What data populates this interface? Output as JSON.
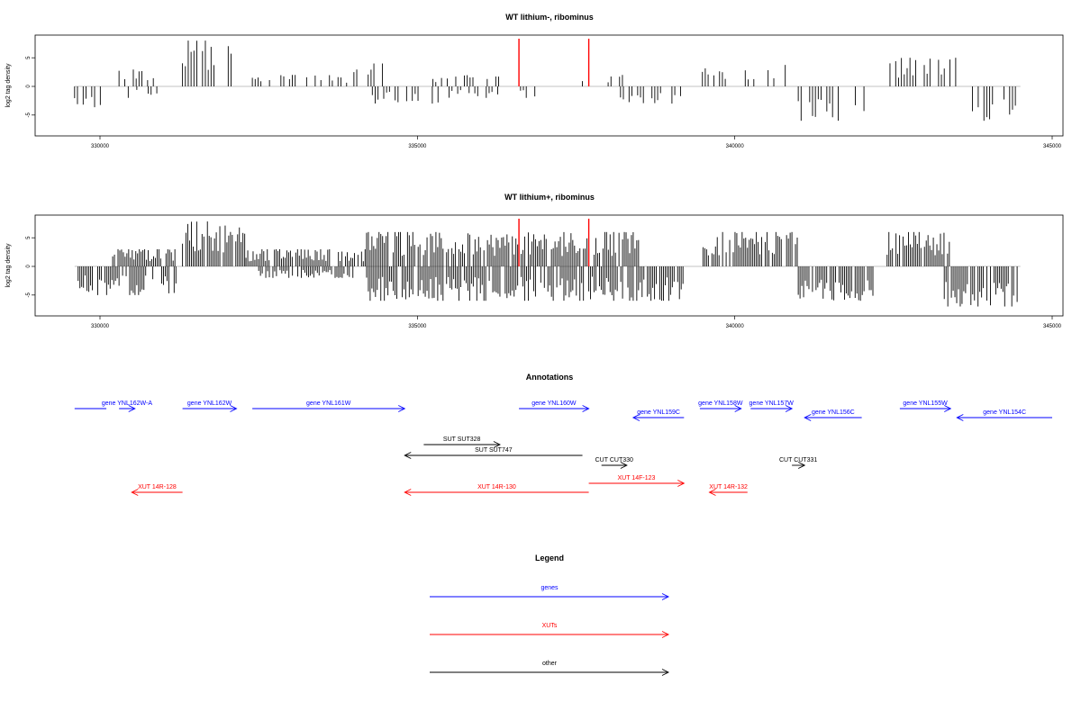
{
  "chart_data": [
    {
      "type": "bar",
      "title": "WT lithium-, ribominus",
      "ylabel": "log2 tag density",
      "xlabel": "",
      "xlim": [
        329600,
        345000
      ],
      "ylim": [
        -8,
        8
      ],
      "xticks": [
        330000,
        335000,
        340000,
        345000
      ],
      "yticks": [
        -5,
        0,
        5
      ],
      "grid": false,
      "coverage_segments": [
        {
          "strand": "minus",
          "start": 329600,
          "end": 330100,
          "max": 4
        },
        {
          "strand": "plus",
          "start": 330300,
          "end": 330900,
          "max": 3
        },
        {
          "strand": "minus",
          "start": 330400,
          "end": 330900,
          "max": 2
        },
        {
          "strand": "plus",
          "start": 331300,
          "end": 332200,
          "max": 8
        },
        {
          "strand": "plus",
          "start": 332400,
          "end": 333900,
          "max": 2
        },
        {
          "strand": "plus",
          "start": 334000,
          "end": 334500,
          "max": 4
        },
        {
          "strand": "minus",
          "start": 334200,
          "end": 335400,
          "max": 3
        },
        {
          "strand": "plus",
          "start": 335200,
          "end": 336300,
          "max": 2
        },
        {
          "strand": "minus",
          "start": 335500,
          "end": 336900,
          "max": 2
        },
        {
          "strand": "plus",
          "start": 337600,
          "end": 338300,
          "max": 2
        },
        {
          "strand": "minus",
          "start": 338200,
          "end": 339200,
          "max": 3
        },
        {
          "strand": "plus",
          "start": 339400,
          "end": 340800,
          "max": 4
        },
        {
          "strand": "minus",
          "start": 341000,
          "end": 342200,
          "max": 6
        },
        {
          "strand": "plus",
          "start": 342400,
          "end": 343500,
          "max": 5
        },
        {
          "strand": "minus",
          "start": 343700,
          "end": 344500,
          "max": 6
        }
      ],
      "markers": [
        336600,
        337700
      ],
      "marker_color": "#ff0000"
    },
    {
      "type": "bar",
      "title": "WT lithium+, ribominus",
      "ylabel": "log2 tag density",
      "xlabel": "",
      "xlim": [
        329600,
        345000
      ],
      "ylim": [
        -8,
        8
      ],
      "xticks": [
        330000,
        335000,
        340000,
        345000
      ],
      "yticks": [
        -5,
        0,
        5
      ],
      "grid": false,
      "coverage_segments": [
        {
          "strand": "minus",
          "start": 329600,
          "end": 331200,
          "max": 5
        },
        {
          "strand": "plus",
          "start": 330200,
          "end": 331200,
          "max": 3
        },
        {
          "strand": "plus",
          "start": 331300,
          "end": 332300,
          "max": 8
        },
        {
          "strand": "plus",
          "start": 332300,
          "end": 334200,
          "max": 3
        },
        {
          "strand": "plus",
          "start": 334200,
          "end": 338500,
          "max": 6
        },
        {
          "strand": "minus",
          "start": 332500,
          "end": 334000,
          "max": 2
        },
        {
          "strand": "minus",
          "start": 334200,
          "end": 339200,
          "max": 6
        },
        {
          "strand": "plus",
          "start": 339500,
          "end": 341000,
          "max": 6
        },
        {
          "strand": "minus",
          "start": 341000,
          "end": 342200,
          "max": 6
        },
        {
          "strand": "plus",
          "start": 342400,
          "end": 343400,
          "max": 6
        },
        {
          "strand": "minus",
          "start": 343300,
          "end": 344500,
          "max": 7
        }
      ],
      "markers": [
        336600,
        337700
      ],
      "marker_color": "#ff0000"
    }
  ],
  "annotations": {
    "title": "Annotations",
    "xlim": [
      329600,
      345000
    ],
    "items": [
      {
        "label": "",
        "start": 329600,
        "end": 330100,
        "strand": "-",
        "row": 0,
        "color": "#0000ff",
        "arrow": false
      },
      {
        "label": "gene YNL162W-A",
        "start": 330300,
        "end": 330550,
        "strand": "+",
        "row": 0,
        "color": "#0000ff"
      },
      {
        "label": "gene YNL162W",
        "start": 331300,
        "end": 332150,
        "strand": "+",
        "row": 0,
        "color": "#0000ff"
      },
      {
        "label": "gene YNL161W",
        "start": 332400,
        "end": 334800,
        "strand": "+",
        "row": 0,
        "color": "#0000ff"
      },
      {
        "label": "gene YNL160W",
        "start": 336600,
        "end": 337700,
        "strand": "+",
        "row": 0,
        "color": "#0000ff"
      },
      {
        "label": "gene YNL159C",
        "start": 338400,
        "end": 339200,
        "strand": "-",
        "row": 1,
        "color": "#0000ff"
      },
      {
        "label": "gene YNL158W",
        "start": 339450,
        "end": 340100,
        "strand": "+",
        "row": 0,
        "color": "#0000ff"
      },
      {
        "label": "gene YNL157W",
        "start": 340250,
        "end": 340900,
        "strand": "+",
        "row": 0,
        "color": "#0000ff"
      },
      {
        "label": "gene YNL156C",
        "start": 341100,
        "end": 342000,
        "strand": "-",
        "row": 1,
        "color": "#0000ff"
      },
      {
        "label": "gene YNL155W",
        "start": 342600,
        "end": 343400,
        "strand": "+",
        "row": 0,
        "color": "#0000ff"
      },
      {
        "label": "gene YNL154C",
        "start": 343500,
        "end": 345000,
        "strand": "-",
        "row": 1,
        "color": "#0000ff"
      },
      {
        "label": "SUT SUT328",
        "start": 335100,
        "end": 336300,
        "strand": "+",
        "row": 2,
        "color": "#000000"
      },
      {
        "label": "SUT SUT747",
        "start": 334800,
        "end": 337600,
        "strand": "-",
        "row": 3,
        "color": "#000000"
      },
      {
        "label": "CUT CUT330",
        "start": 337900,
        "end": 338300,
        "strand": "+",
        "row": 4,
        "color": "#000000"
      },
      {
        "label": "CUT CUT331",
        "start": 340900,
        "end": 341100,
        "strand": "+",
        "row": 4,
        "color": "#000000"
      },
      {
        "label": "XUT 14R-128",
        "start": 330500,
        "end": 331300,
        "strand": "-",
        "row": 6,
        "color": "#ff0000"
      },
      {
        "label": "XUT 14F-123",
        "start": 337700,
        "end": 339200,
        "strand": "+",
        "row": 5,
        "color": "#ff0000"
      },
      {
        "label": "XUT 14R-130",
        "start": 334800,
        "end": 337700,
        "strand": "-",
        "row": 6,
        "color": "#ff0000"
      },
      {
        "label": "XUT 14R-132",
        "start": 339600,
        "end": 340200,
        "strand": "-",
        "row": 6,
        "color": "#ff0000"
      }
    ]
  },
  "legend": {
    "title": "Legend",
    "items": [
      {
        "label": "genes",
        "color": "#0000ff"
      },
      {
        "label": "XUTs",
        "color": "#ff0000"
      },
      {
        "label": "other",
        "color": "#000000"
      }
    ]
  }
}
